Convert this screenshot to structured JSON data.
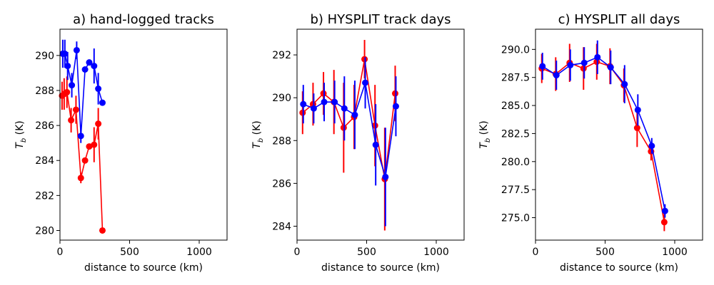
{
  "colors": {
    "red": "#ff0000",
    "blue": "#0000ff"
  },
  "chart_data": [
    {
      "type": "line",
      "title": "a) hand-logged tracks",
      "xlabel": "distance to source (km)",
      "ylabel": "T_b (K)",
      "ylabel_main": "T",
      "ylabel_sub": "b",
      "ylabel_unit": " (K)",
      "xlim": [
        0,
        1200
      ],
      "ylim": [
        279.45,
        291.5
      ],
      "xticks": [
        0,
        500,
        1000
      ],
      "xtick_labels": [
        "0",
        "500",
        "1000"
      ],
      "yticks": [
        280,
        282,
        284,
        286,
        288,
        290
      ],
      "ytick_labels": [
        "280",
        "282",
        "284",
        "286",
        "288",
        "290"
      ],
      "series": [
        {
          "name": "red",
          "color": "#ff0000",
          "x": [
            15,
            30,
            50,
            80,
            115,
            150,
            180,
            210,
            245,
            275,
            305
          ],
          "y": [
            287.7,
            287.8,
            287.9,
            286.3,
            286.9,
            283.0,
            284.0,
            284.8,
            284.9,
            286.1,
            280.0
          ],
          "err": [
            0.8,
            0.9,
            0.9,
            0.7,
            0.8,
            0.3,
            0.0,
            0.0,
            1.0,
            0.9,
            0.0
          ]
        },
        {
          "name": "blue",
          "color": "#0000ff",
          "x": [
            20,
            35,
            55,
            85,
            120,
            150,
            180,
            210,
            245,
            275,
            305
          ],
          "y": [
            290.1,
            290.1,
            289.4,
            288.3,
            290.3,
            285.4,
            289.2,
            289.6,
            289.4,
            288.1,
            287.3
          ],
          "err": [
            0.8,
            0.8,
            0.8,
            0.7,
            0.5,
            0.4,
            0.0,
            0.0,
            1.0,
            0.9,
            0.0
          ]
        }
      ]
    },
    {
      "type": "line",
      "title": "b) HYSPLIT track days",
      "xlabel": "distance to source (km)",
      "ylabel": "T_b (K)",
      "ylabel_main": "T",
      "ylabel_sub": "b",
      "ylabel_unit": " (K)",
      "xlim": [
        0,
        1200
      ],
      "ylim": [
        283.35,
        293.2
      ],
      "xticks": [
        0,
        500,
        1000
      ],
      "xtick_labels": [
        "0",
        "500",
        "1000"
      ],
      "yticks": [
        284,
        286,
        288,
        290,
        292
      ],
      "ytick_labels": [
        "284",
        "286",
        "288",
        "290",
        "292"
      ],
      "series": [
        {
          "name": "red",
          "color": "#ff0000",
          "x": [
            40,
            115,
            190,
            265,
            335,
            410,
            485,
            560,
            630,
            705
          ],
          "y": [
            289.3,
            289.7,
            290.2,
            289.8,
            288.6,
            289.1,
            291.8,
            288.7,
            286.2,
            290.2
          ],
          "err": [
            1.0,
            1.0,
            1.0,
            1.5,
            2.1,
            1.5,
            0.9,
            1.9,
            2.4,
            1.3
          ]
        },
        {
          "name": "blue",
          "color": "#0000ff",
          "x": [
            45,
            120,
            195,
            270,
            340,
            415,
            490,
            565,
            635,
            710
          ],
          "y": [
            289.7,
            289.5,
            289.8,
            289.8,
            289.5,
            289.2,
            290.7,
            287.8,
            286.3,
            289.6
          ],
          "err": [
            0.9,
            0.7,
            0.9,
            1.0,
            1.5,
            1.6,
            1.2,
            1.9,
            2.3,
            1.4
          ]
        }
      ]
    },
    {
      "type": "line",
      "title": "c) HYSPLIT all days",
      "xlabel": "distance to source (km)",
      "ylabel": "T_b (K)",
      "ylabel_main": "T",
      "ylabel_sub": "b",
      "ylabel_unit": " (K)",
      "xlim": [
        0,
        1200
      ],
      "ylim": [
        273.0,
        291.8
      ],
      "xticks": [
        0,
        500,
        1000
      ],
      "xtick_labels": [
        "0",
        "500",
        "1000"
      ],
      "yticks": [
        275.0,
        277.5,
        280.0,
        282.5,
        285.0,
        287.5,
        290.0
      ],
      "ytick_labels": [
        "275.0",
        "277.5",
        "280.0",
        "282.5",
        "285.0",
        "287.5",
        "290.0"
      ],
      "series": [
        {
          "name": "red",
          "color": "#ff0000",
          "x": [
            45,
            145,
            245,
            345,
            440,
            535,
            635,
            730,
            830,
            925
          ],
          "y": [
            288.3,
            287.8,
            288.8,
            288.3,
            288.9,
            288.5,
            286.8,
            283.0,
            280.9,
            274.6
          ],
          "err": [
            1.3,
            1.5,
            1.7,
            1.9,
            1.6,
            1.6,
            1.5,
            1.7,
            0.8,
            0.8
          ]
        },
        {
          "name": "blue",
          "color": "#0000ff",
          "x": [
            50,
            150,
            250,
            350,
            445,
            540,
            640,
            735,
            835,
            930
          ],
          "y": [
            288.5,
            287.7,
            288.6,
            288.8,
            289.3,
            288.4,
            286.9,
            284.6,
            281.4,
            275.6
          ],
          "err": [
            1.2,
            1.3,
            1.4,
            1.4,
            1.5,
            1.5,
            1.7,
            1.4,
            0.7,
            0.6
          ]
        }
      ]
    }
  ]
}
